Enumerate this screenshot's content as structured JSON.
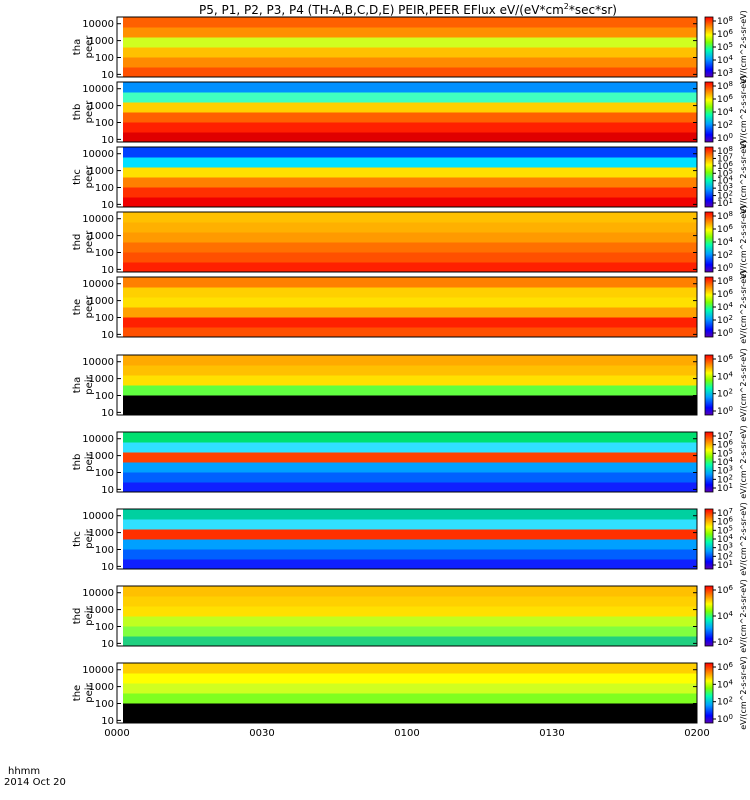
{
  "chart_data": {
    "type": "heatmap",
    "title": "P5, P1, P2, P3, P4 (TH-A,B,C,D,E) PEIR,PEER EFlux eV/(eV*cm",
    "title_super": "2",
    "title_tail": "*sec*sr)",
    "x_axis": {
      "label_line1": "hhmm",
      "label_line2": "2014 Oct 20",
      "ticks": [
        "0000",
        "0030",
        "0100",
        "0130",
        "0200"
      ],
      "range_minutes": [
        0,
        120
      ]
    },
    "y_scale": "log",
    "y_range_eV": [
      7,
      25000
    ],
    "y_ticks": [
      "10000",
      "1000",
      "100",
      "10"
    ],
    "colorbar_units": "eV/(cm^2-s-sr-eV)",
    "colorbar_units_full": "[eV/(cm2-s-sr-eV)]",
    "panels": [
      {
        "probe": "tha",
        "species": "peer",
        "colorbar_ticks": [
          "10^8",
          "10^6",
          "10^5",
          "10^4",
          "10^3"
        ],
        "start_minute": 0
      },
      {
        "probe": "thb",
        "species": "peer",
        "colorbar_ticks": [
          "10^8",
          "10^6",
          "10^4",
          "10^2",
          "10^0"
        ],
        "start_minute": 0
      },
      {
        "probe": "thc",
        "species": "peer",
        "colorbar_ticks": [
          "10^8",
          "10^7",
          "10^6",
          "10^5",
          "10^4",
          "10^3",
          "10^2",
          "10^1"
        ],
        "start_minute": 0
      },
      {
        "probe": "thd",
        "species": "peer",
        "colorbar_ticks": [
          "10^8",
          "10^6",
          "10^4",
          "10^2",
          "10^0"
        ],
        "start_minute": 0
      },
      {
        "probe": "the",
        "species": "peer",
        "colorbar_ticks": [
          "10^8",
          "10^6",
          "10^4",
          "10^2",
          "10^0"
        ],
        "start_minute": 0
      },
      {
        "probe": "tha",
        "species": "peir",
        "colorbar_ticks": [
          "10^6",
          "10^4",
          "10^2",
          "10^0"
        ],
        "start_minute": 0
      },
      {
        "probe": "thb",
        "species": "peir",
        "colorbar_ticks": [
          "10^7",
          "10^6",
          "10^5",
          "10^4",
          "10^3",
          "10^2",
          "10^1"
        ],
        "start_minute": 0
      },
      {
        "probe": "thc",
        "species": "peir",
        "colorbar_ticks": [
          "10^7",
          "10^6",
          "10^5",
          "10^4",
          "10^3",
          "10^2",
          "10^1"
        ],
        "start_minute": 0
      },
      {
        "probe": "thd",
        "species": "peir",
        "colorbar_ticks": [
          "10^6",
          "10^4",
          "10^2"
        ],
        "start_minute": 0
      },
      {
        "probe": "the",
        "species": "peir",
        "colorbar_ticks": [
          "10^6",
          "10^4",
          "10^2",
          "10^0"
        ],
        "start_minute": 0
      }
    ]
  }
}
